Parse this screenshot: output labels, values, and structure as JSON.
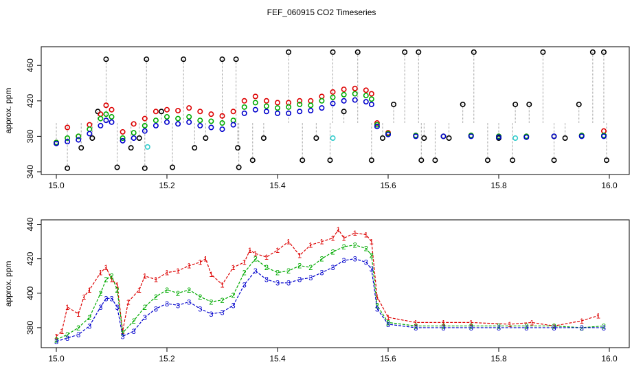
{
  "chart_data": {
    "title": "FEF_060915  CO2 Timeseries",
    "panels": [
      {
        "type": "scatter",
        "ylabel": "approx. ppm",
        "xlabel": "",
        "xlim": [
          15.0,
          16.0
        ],
        "ylim": [
          340,
          478
        ],
        "xticks": [
          "15.0",
          "15.2",
          "15.4",
          "15.6",
          "15.8",
          "16.0"
        ],
        "yticks": [
          "340",
          "380",
          "420",
          "460"
        ],
        "grid": false,
        "series": [
          {
            "name": "black",
            "color": "#000000",
            "x": [
              15.0,
              15.02,
              15.045,
              15.065,
              15.075,
              15.09,
              15.11,
              15.135,
              15.15,
              15.16,
              15.163,
              15.19,
              15.21,
              15.23,
              15.25,
              15.27,
              15.3,
              15.325,
              15.328,
              15.33,
              15.355,
              15.375,
              15.42,
              15.445,
              15.47,
              15.495,
              15.5,
              15.52,
              15.545,
              15.57,
              15.59,
              15.61,
              15.63,
              15.655,
              15.66,
              15.665,
              15.685,
              15.71,
              15.735,
              15.755,
              15.78,
              15.8,
              15.825,
              15.83,
              15.855,
              15.88,
              15.9,
              15.92,
              15.945,
              15.97,
              15.99,
              15.995
            ],
            "y": [
              372,
              344,
              367,
              378,
              408,
              467,
              345,
              367,
              378,
              344,
              467,
              408,
              345,
              467,
              367,
              378,
              467,
              467,
              367,
              345,
              353,
              378,
              475,
              353,
              378,
              353,
              475,
              408,
              475,
              353,
              378,
              416,
              475,
              475,
              353,
              378,
              353,
              378,
              416,
              475,
              353,
              378,
              353,
              416,
              416,
              475,
              353,
              378,
              416,
              475,
              475,
              353
            ]
          },
          {
            "name": "red",
            "color": "#dd0000",
            "x": [
              15.0,
              15.02,
              15.04,
              15.06,
              15.08,
              15.09,
              15.1,
              15.12,
              15.14,
              15.16,
              15.18,
              15.2,
              15.22,
              15.24,
              15.26,
              15.28,
              15.3,
              15.32,
              15.34,
              15.36,
              15.38,
              15.4,
              15.42,
              15.44,
              15.46,
              15.48,
              15.5,
              15.52,
              15.54,
              15.56,
              15.57,
              15.58,
              15.6,
              15.65,
              15.7,
              15.75,
              15.8,
              15.85,
              15.9,
              15.95,
              15.99
            ],
            "y": [
              373,
              390,
              380,
              393,
              405,
              415,
              410,
              385,
              394,
              400,
              408,
              410,
              409,
              412,
              408,
              405,
              403,
              408,
              420,
              425,
              420,
              418,
              418,
              420,
              420,
              425,
              430,
              433,
              434,
              432,
              428,
              395,
              384,
              381,
              380,
              381,
              380,
              380,
              380,
              381,
              386
            ]
          },
          {
            "name": "green",
            "color": "#00aa00",
            "x": [
              15.0,
              15.02,
              15.04,
              15.06,
              15.08,
              15.09,
              15.1,
              15.12,
              15.14,
              15.16,
              15.18,
              15.2,
              15.22,
              15.24,
              15.26,
              15.28,
              15.3,
              15.32,
              15.34,
              15.36,
              15.38,
              15.4,
              15.42,
              15.44,
              15.46,
              15.48,
              15.5,
              15.52,
              15.54,
              15.56,
              15.57,
              15.58,
              15.6,
              15.65,
              15.7,
              15.75,
              15.8,
              15.85,
              15.9,
              15.95,
              15.99
            ],
            "y": [
              373,
              378,
              380,
              388,
              400,
              405,
              402,
              378,
              384,
              392,
              398,
              402,
              400,
              402,
              398,
              397,
              395,
              398,
              413,
              418,
              414,
              412,
              413,
              416,
              415,
              420,
              424,
              427,
              428,
              426,
              422,
              393,
              383,
              381,
              380,
              381,
              380,
              380,
              380,
              381,
              381
            ]
          },
          {
            "name": "blue",
            "color": "#0000cc",
            "x": [
              15.0,
              15.02,
              15.04,
              15.06,
              15.08,
              15.09,
              15.1,
              15.12,
              15.14,
              15.16,
              15.18,
              15.2,
              15.22,
              15.24,
              15.26,
              15.28,
              15.3,
              15.32,
              15.34,
              15.36,
              15.38,
              15.4,
              15.42,
              15.44,
              15.46,
              15.48,
              15.5,
              15.52,
              15.54,
              15.56,
              15.57,
              15.58,
              15.6,
              15.65,
              15.7,
              15.75,
              15.8,
              15.85,
              15.9,
              15.95,
              15.99
            ],
            "y": [
              372,
              374,
              376,
              383,
              392,
              398,
              396,
              375,
              378,
              386,
              392,
              396,
              394,
              396,
              392,
              390,
              388,
              393,
              406,
              410,
              408,
              406,
              406,
              408,
              409,
              412,
              417,
              420,
              421,
              419,
              416,
              391,
              382,
              380,
              380,
              380,
              379,
              379,
              380,
              380,
              380
            ]
          },
          {
            "name": "cyan",
            "color": "#33cccc",
            "x": [
              15.165,
              15.5,
              15.83
            ],
            "y": [
              368,
              378,
              378
            ]
          }
        ]
      },
      {
        "type": "line",
        "ylabel": "approx. ppm",
        "xlabel": "",
        "xlim": [
          15.0,
          16.0
        ],
        "ylim": [
          370,
          441
        ],
        "xticks": [
          "15.0",
          "15.2",
          "15.4",
          "15.6",
          "15.8",
          "16.0"
        ],
        "yticks": [
          "380",
          "400",
          "420",
          "440"
        ],
        "grid": false,
        "series": [
          {
            "name": "1",
            "marker": "1",
            "color": "#dd0000",
            "x": [
              15.0,
              15.01,
              15.02,
              15.04,
              15.05,
              15.06,
              15.08,
              15.09,
              15.1,
              15.11,
              15.12,
              15.13,
              15.15,
              15.16,
              15.18,
              15.2,
              15.22,
              15.24,
              15.26,
              15.27,
              15.28,
              15.3,
              15.32,
              15.34,
              15.35,
              15.36,
              15.38,
              15.4,
              15.42,
              15.44,
              15.46,
              15.48,
              15.5,
              15.51,
              15.52,
              15.54,
              15.56,
              15.57,
              15.58,
              15.6,
              15.65,
              15.7,
              15.75,
              15.82,
              15.86,
              15.9,
              15.95,
              15.98
            ],
            "y": [
              375,
              378,
              392,
              388,
              398,
              402,
              412,
              415,
              408,
              405,
              378,
              395,
              402,
              410,
              408,
              412,
              413,
              416,
              418,
              420,
              411,
              405,
              415,
              418,
              425,
              423,
              421,
              425,
              430,
              422,
              428,
              430,
              432,
              437,
              432,
              435,
              434,
              430,
              398,
              386,
              383,
              383,
              383,
              382,
              383,
              381,
              384,
              387
            ]
          },
          {
            "name": "2",
            "marker": "2",
            "color": "#00aa00",
            "x": [
              15.0,
              15.02,
              15.04,
              15.06,
              15.08,
              15.09,
              15.1,
              15.11,
              15.12,
              15.14,
              15.16,
              15.18,
              15.2,
              15.22,
              15.24,
              15.26,
              15.28,
              15.3,
              15.32,
              15.34,
              15.36,
              15.38,
              15.4,
              15.42,
              15.44,
              15.46,
              15.48,
              15.5,
              15.52,
              15.54,
              15.56,
              15.57,
              15.58,
              15.6,
              15.65,
              15.7,
              15.75,
              15.8,
              15.85,
              15.9,
              15.95,
              15.99
            ],
            "y": [
              373,
              376,
              380,
              386,
              400,
              408,
              410,
              402,
              377,
              384,
              392,
              398,
              402,
              400,
              402,
              398,
              395,
              396,
              399,
              412,
              420,
              415,
              412,
              413,
              416,
              415,
              420,
              424,
              427,
              428,
              426,
              422,
              393,
              383,
              381,
              381,
              381,
              381,
              381,
              381,
              380,
              381
            ]
          },
          {
            "name": "3",
            "marker": "3",
            "color": "#0000cc",
            "x": [
              15.0,
              15.02,
              15.04,
              15.06,
              15.08,
              15.09,
              15.1,
              15.11,
              15.12,
              15.14,
              15.16,
              15.18,
              15.2,
              15.22,
              15.24,
              15.26,
              15.28,
              15.3,
              15.32,
              15.34,
              15.36,
              15.38,
              15.4,
              15.42,
              15.44,
              15.46,
              15.48,
              15.5,
              15.52,
              15.54,
              15.56,
              15.57,
              15.58,
              15.6,
              15.65,
              15.7,
              15.75,
              15.8,
              15.85,
              15.9,
              15.95,
              15.99
            ],
            "y": [
              372,
              374,
              376,
              381,
              392,
              397,
              397,
              392,
              375,
              378,
              386,
              391,
              394,
              393,
              395,
              391,
              388,
              389,
              393,
              405,
              413,
              408,
              406,
              406,
              408,
              409,
              412,
              415,
              419,
              420,
              418,
              414,
              391,
              382,
              380,
              380,
              380,
              380,
              380,
              380,
              380,
              380
            ]
          }
        ]
      }
    ]
  }
}
